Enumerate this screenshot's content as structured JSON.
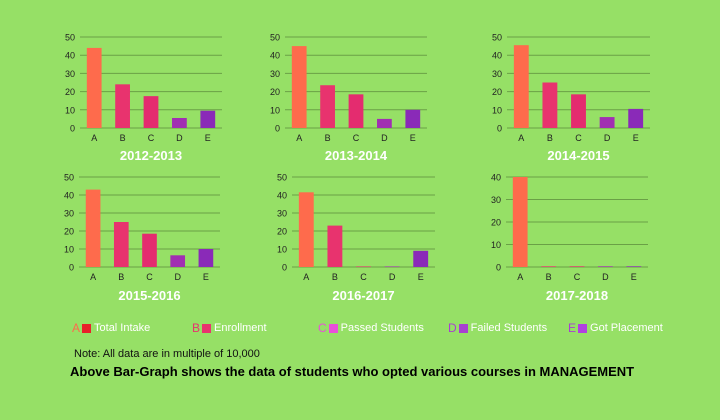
{
  "chart_data": [
    {
      "type": "bar",
      "title": "2012-2013",
      "categories": [
        "A",
        "B",
        "C",
        "D",
        "E"
      ],
      "values": [
        44,
        24,
        17.5,
        5.5,
        9.5
      ],
      "ylim": [
        0,
        50
      ],
      "yticks": [
        0,
        10,
        20,
        30,
        40,
        50
      ]
    },
    {
      "type": "bar",
      "title": "2013-2014",
      "categories": [
        "A",
        "B",
        "C",
        "D",
        "E"
      ],
      "values": [
        45,
        23.5,
        18.5,
        5,
        10
      ],
      "ylim": [
        0,
        50
      ],
      "yticks": [
        0,
        10,
        20,
        30,
        40,
        50
      ]
    },
    {
      "type": "bar",
      "title": "2014-2015",
      "categories": [
        "A",
        "B",
        "C",
        "D",
        "E"
      ],
      "values": [
        45.5,
        25,
        18.5,
        6,
        10.5
      ],
      "ylim": [
        0,
        50
      ],
      "yticks": [
        0,
        10,
        20,
        30,
        40,
        50
      ]
    },
    {
      "type": "bar",
      "title": "2015-2016",
      "categories": [
        "A",
        "B",
        "C",
        "D",
        "E"
      ],
      "values": [
        43,
        25,
        18.5,
        6.5,
        10
      ],
      "ylim": [
        0,
        50
      ],
      "yticks": [
        0,
        10,
        20,
        30,
        40,
        50
      ]
    },
    {
      "type": "bar",
      "title": "2016-2017",
      "categories": [
        "A",
        "B",
        "C",
        "D",
        "E"
      ],
      "values": [
        41.5,
        23,
        0.3,
        0.3,
        9
      ],
      "ylim": [
        0,
        50
      ],
      "yticks": [
        0,
        10,
        20,
        30,
        40,
        50
      ]
    },
    {
      "type": "bar",
      "title": "2017-2018",
      "categories": [
        "A",
        "B",
        "C",
        "D",
        "E"
      ],
      "values": [
        40,
        0.3,
        0.3,
        0.3,
        0.3
      ],
      "ylim": [
        0,
        40
      ],
      "yticks": [
        0,
        10,
        20,
        30,
        40
      ]
    }
  ],
  "legend": [
    {
      "letter": "A",
      "label": "Total Intake",
      "color": "#fe6b4c"
    },
    {
      "letter": "B",
      "label": "Enrollment",
      "color": "#e8336e"
    },
    {
      "letter": "C",
      "label": "Passed Students",
      "color": "#e94fd9"
    },
    {
      "letter": "D",
      "label": "Failed Students",
      "color": "#a83fd1"
    },
    {
      "letter": "E",
      "label": "Got Placement",
      "color": "#8a2ab8"
    }
  ],
  "colors": {
    "A": "#fe6b4c",
    "B": "#e8336e",
    "C": "#e42c6f",
    "D": "#a12fb2",
    "E": "#8a2ab8",
    "grid": "#6aa046",
    "text": "#222222",
    "title": "#ffffff",
    "bg": "#96e066"
  },
  "note": "Note: All data are in multiple of 10,000",
  "caption": "Above Bar-Graph shows the data of students who opted various courses in MANAGEMENT"
}
